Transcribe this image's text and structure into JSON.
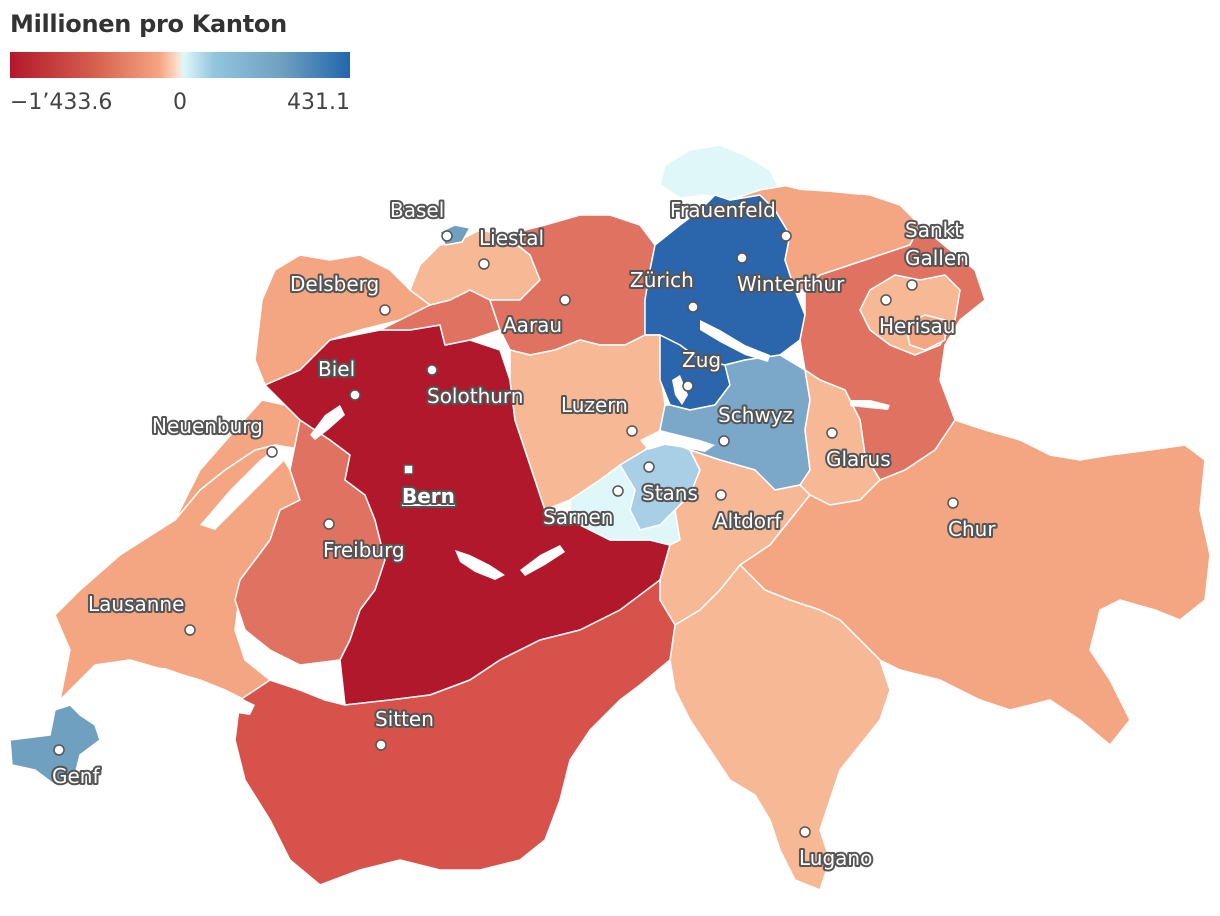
{
  "legend": {
    "title": "Millionen pro Kanton",
    "min_label": "−1’433.6",
    "zero_label": "0",
    "max_label": "431.1",
    "min_value": -1433.6,
    "max_value": 431.1,
    "colors": [
      "#b2182b",
      "#d6604d",
      "#f4a582",
      "#fddbc7",
      "#e0f7fa",
      "#92c5de",
      "#6fa0c0",
      "#2166ac"
    ]
  },
  "cantons": [
    {
      "id": "ZH",
      "color": "#2b66ac"
    },
    {
      "id": "BE",
      "color": "#b2182b"
    },
    {
      "id": "VS",
      "color": "#d6524a"
    },
    {
      "id": "AG",
      "color": "#df7260"
    },
    {
      "id": "SO",
      "color": "#df7260"
    },
    {
      "id": "FR",
      "color": "#df7260"
    },
    {
      "id": "TG",
      "color": "#f4a582"
    },
    {
      "id": "SG",
      "color": "#df7260"
    },
    {
      "id": "AR",
      "color": "#f6b895"
    },
    {
      "id": "AI",
      "color": "#f4a582"
    },
    {
      "id": "GR",
      "color": "#f4a582"
    },
    {
      "id": "TI",
      "color": "#f6b895"
    },
    {
      "id": "VD",
      "color": "#f4a582"
    },
    {
      "id": "NE",
      "color": "#f4a582"
    },
    {
      "id": "JU",
      "color": "#f4a582"
    },
    {
      "id": "BL",
      "color": "#f6b895"
    },
    {
      "id": "BS",
      "color": "#6fa0c0"
    },
    {
      "id": "GE",
      "color": "#6fa0c0"
    },
    {
      "id": "LU",
      "color": "#f6b895"
    },
    {
      "id": "ZG",
      "color": "#2b66ac"
    },
    {
      "id": "SZ",
      "color": "#7ba7c8"
    },
    {
      "id": "GL",
      "color": "#f6b895"
    },
    {
      "id": "UR",
      "color": "#f6b895"
    },
    {
      "id": "OW",
      "color": "#e0f7fa"
    },
    {
      "id": "NW",
      "color": "#a9cfe6"
    },
    {
      "id": "SH",
      "color": "#e0f7fa"
    }
  ],
  "cities": {
    "basel": "Basel",
    "liestal": "Liestal",
    "delsberg": "Delsberg",
    "aarau": "Aarau",
    "frauenfeld": "Frauenfeld",
    "zurich": "Zürich",
    "winterthur": "Winterthur",
    "sankt_gallen_1": "Sankt",
    "sankt_gallen_2": "Gallen",
    "herisau": "Herisau",
    "biel": "Biel",
    "solothurn": "Solothurn",
    "zug": "Zug",
    "luzern": "Luzern",
    "schwyz": "Schwyz",
    "neuenburg": "Neuenburg",
    "glarus": "Glarus",
    "bern": "Bern",
    "stans": "Stans",
    "sarnen": "Sarnen",
    "altdorf": "Altdorf",
    "chur": "Chur",
    "freiburg": "Freiburg",
    "lausanne": "Lausanne",
    "sitten": "Sitten",
    "genf": "Genf",
    "lugano": "Lugano"
  }
}
